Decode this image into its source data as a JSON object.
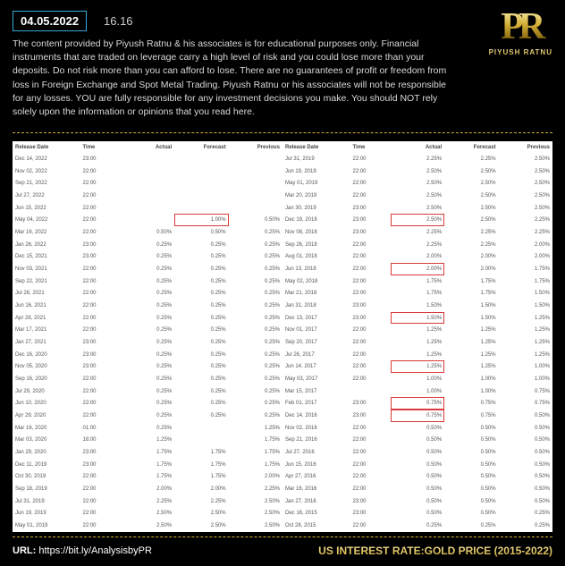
{
  "header": {
    "date_badge": "04.05.2022",
    "time": "16.16",
    "logo_monogram": "PR",
    "logo_name": "PIYUSH RATNU",
    "disclaimer": "The content provided by Piyush Ratnu & his associates is for educational purposes only. Financial instruments that are traded on leverage carry a high level of risk and you could lose more than your deposits. Do not risk more than you can afford to lose. There are no guarantees of profit or freedom from loss in Foreign Exchange and Spot Metal Trading. Piyush Ratnu or his associates will not be responsible for any losses. YOU are fully responsible for any investment decisions you make. You should NOT rely solely upon the information or opinions that you read here."
  },
  "footer": {
    "url_label": "URL:",
    "url_value": "https://bit.ly/AnalysisbyPR",
    "title": "US INTEREST RATE:GOLD PRICE (2015-2022)"
  },
  "columns": [
    "Release Date",
    "Time",
    "Actual",
    "Forecast",
    "Previous"
  ],
  "left_rows": [
    {
      "d": "Dec 14, 2022",
      "t": "23:00",
      "a": "",
      "f": "",
      "p": ""
    },
    {
      "d": "Nov 02, 2022",
      "t": "22:00",
      "a": "",
      "f": "",
      "p": ""
    },
    {
      "d": "Sep 21, 2022",
      "t": "22:00",
      "a": "",
      "f": "",
      "p": ""
    },
    {
      "d": "Jul 27, 2022",
      "t": "22:00",
      "a": "",
      "f": "",
      "p": ""
    },
    {
      "d": "Jun 15, 2022",
      "t": "22:00",
      "a": "",
      "f": "",
      "p": ""
    },
    {
      "d": "May 04, 2022",
      "t": "22:00",
      "a": "",
      "f": "1.00%",
      "p": "0.50%",
      "hl": "empty"
    },
    {
      "d": "Mar 16, 2022",
      "t": "22:00",
      "a": "0.50%",
      "f": "0.50%",
      "p": "0.25%"
    },
    {
      "d": "Jan 26, 2022",
      "t": "23:00",
      "a": "0.25%",
      "f": "0.25%",
      "p": "0.25%"
    },
    {
      "d": "Dec 15, 2021",
      "t": "23:00",
      "a": "0.25%",
      "f": "0.25%",
      "p": "0.25%"
    },
    {
      "d": "Nov 03, 2021",
      "t": "22:00",
      "a": "0.25%",
      "f": "0.25%",
      "p": "0.25%"
    },
    {
      "d": "Sep 22, 2021",
      "t": "22:00",
      "a": "0.25%",
      "f": "0.25%",
      "p": "0.25%"
    },
    {
      "d": "Jul 28, 2021",
      "t": "22:00",
      "a": "0.25%",
      "f": "0.25%",
      "p": "0.25%"
    },
    {
      "d": "Jun 16, 2021",
      "t": "22:00",
      "a": "0.25%",
      "f": "0.25%",
      "p": "0.25%"
    },
    {
      "d": "Apr 28, 2021",
      "t": "22:00",
      "a": "0.25%",
      "f": "0.25%",
      "p": "0.25%"
    },
    {
      "d": "Mar 17, 2021",
      "t": "22:00",
      "a": "0.25%",
      "f": "0.25%",
      "p": "0.25%"
    },
    {
      "d": "Jan 27, 2021",
      "t": "23:00",
      "a": "0.25%",
      "f": "0.25%",
      "p": "0.25%"
    },
    {
      "d": "Dec 16, 2020",
      "t": "23:00",
      "a": "0.25%",
      "f": "0.25%",
      "p": "0.25%"
    },
    {
      "d": "Nov 05, 2020",
      "t": "23:00",
      "a": "0.25%",
      "f": "0.25%",
      "p": "0.25%"
    },
    {
      "d": "Sep 16, 2020",
      "t": "22:00",
      "a": "0.25%",
      "f": "0.25%",
      "p": "0.25%"
    },
    {
      "d": "Jul 29, 2020",
      "t": "22:00",
      "a": "0.25%",
      "f": "0.25%",
      "p": "0.25%"
    },
    {
      "d": "Jun 10, 2020",
      "t": "22:00",
      "a": "0.25%",
      "f": "0.25%",
      "p": "0.25%"
    },
    {
      "d": "Apr 29, 2020",
      "t": "22:00",
      "a": "0.25%",
      "f": "0.25%",
      "p": "0.25%"
    },
    {
      "d": "Mar 16, 2020",
      "t": "01:00",
      "a": "0.25%",
      "f": "",
      "p": "1.25%"
    },
    {
      "d": "Mar 03, 2020",
      "t": "18:00",
      "a": "1.25%",
      "f": "",
      "p": "1.75%"
    },
    {
      "d": "Jan 29, 2020",
      "t": "23:00",
      "a": "1.75%",
      "f": "1.75%",
      "p": "1.75%"
    },
    {
      "d": "Dec 11, 2019",
      "t": "23:00",
      "a": "1.75%",
      "f": "1.75%",
      "p": "1.75%"
    },
    {
      "d": "Oct 30, 2019",
      "t": "22:00",
      "a": "1.75%",
      "f": "1.75%",
      "p": "2.00%"
    },
    {
      "d": "Sep 18, 2019",
      "t": "22:00",
      "a": "2.00%",
      "f": "2.00%",
      "p": "2.25%"
    },
    {
      "d": "Jul 31, 2019",
      "t": "22:00",
      "a": "2.25%",
      "f": "2.25%",
      "p": "2.50%"
    },
    {
      "d": "Jun 19, 2019",
      "t": "22:00",
      "a": "2.50%",
      "f": "2.50%",
      "p": "2.50%"
    },
    {
      "d": "May 01, 2019",
      "t": "22:00",
      "a": "2.50%",
      "f": "2.50%",
      "p": "2.50%"
    }
  ],
  "right_rows": [
    {
      "d": "Jul 31, 2019",
      "t": "22:00",
      "a": "2.25%",
      "f": "2.25%",
      "p": "2.50%"
    },
    {
      "d": "Jun 19, 2019",
      "t": "22:00",
      "a": "2.50%",
      "f": "2.50%",
      "p": "2.50%"
    },
    {
      "d": "May 01, 2019",
      "t": "22:00",
      "a": "2.50%",
      "f": "2.50%",
      "p": "2.50%"
    },
    {
      "d": "Mar 20, 2019",
      "t": "22:00",
      "a": "2.50%",
      "f": "2.50%",
      "p": "2.50%"
    },
    {
      "d": "Jan 30, 2019",
      "t": "23:00",
      "a": "2.50%",
      "f": "2.50%",
      "p": "2.50%"
    },
    {
      "d": "Dec 19, 2018",
      "t": "23:00",
      "a": "2.50%",
      "f": "2.50%",
      "p": "2.25%",
      "hl": "full"
    },
    {
      "d": "Nov 08, 2018",
      "t": "23:00",
      "a": "2.25%",
      "f": "2.25%",
      "p": "2.25%"
    },
    {
      "d": "Sep 26, 2018",
      "t": "22:00",
      "a": "2.25%",
      "f": "2.25%",
      "p": "2.00%"
    },
    {
      "d": "Aug 01, 2018",
      "t": "22:00",
      "a": "2.00%",
      "f": "2.00%",
      "p": "2.00%"
    },
    {
      "d": "Jun 13, 2018",
      "t": "22:00",
      "a": "2.00%",
      "f": "2.00%",
      "p": "1.75%",
      "hl": "full"
    },
    {
      "d": "May 02, 2018",
      "t": "22:00",
      "a": "1.75%",
      "f": "1.75%",
      "p": "1.75%"
    },
    {
      "d": "Mar 21, 2018",
      "t": "22:00",
      "a": "1.75%",
      "f": "1.75%",
      "p": "1.50%"
    },
    {
      "d": "Jan 31, 2018",
      "t": "23:00",
      "a": "1.50%",
      "f": "1.50%",
      "p": "1.50%"
    },
    {
      "d": "Dec 13, 2017",
      "t": "23:00",
      "a": "1.50%",
      "f": "1.50%",
      "p": "1.25%",
      "hl": "full"
    },
    {
      "d": "Nov 01, 2017",
      "t": "22:00",
      "a": "1.25%",
      "f": "1.25%",
      "p": "1.25%"
    },
    {
      "d": "Sep 20, 2017",
      "t": "22:00",
      "a": "1.25%",
      "f": "1.25%",
      "p": "1.25%"
    },
    {
      "d": "Jul 26, 2017",
      "t": "22:00",
      "a": "1.25%",
      "f": "1.25%",
      "p": "1.25%"
    },
    {
      "d": "Jun 14, 2017",
      "t": "22:00",
      "a": "1.25%",
      "f": "1.25%",
      "p": "1.00%",
      "hl": "full"
    },
    {
      "d": "May 03, 2017",
      "t": "22:00",
      "a": "1.00%",
      "f": "1.00%",
      "p": "1.00%"
    },
    {
      "d": "Mar 15, 2017",
      "t": "",
      "a": "1.00%",
      "f": "1.00%",
      "p": "0.75%"
    },
    {
      "d": "Feb 01, 2017",
      "t": "23:00",
      "a": "0.75%",
      "f": "0.75%",
      "p": "0.75%",
      "hl": "full"
    },
    {
      "d": "Dec 14, 2016",
      "t": "23:00",
      "a": "0.75%",
      "f": "0.75%",
      "p": "0.50%",
      "hl": "full"
    },
    {
      "d": "Nov 02, 2016",
      "t": "22:00",
      "a": "0.50%",
      "f": "0.50%",
      "p": "0.50%"
    },
    {
      "d": "Sep 21, 2016",
      "t": "22:00",
      "a": "0.50%",
      "f": "0.50%",
      "p": "0.50%"
    },
    {
      "d": "Jul 27, 2016",
      "t": "22:00",
      "a": "0.50%",
      "f": "0.50%",
      "p": "0.50%"
    },
    {
      "d": "Jun 15, 2016",
      "t": "22:00",
      "a": "0.50%",
      "f": "0.50%",
      "p": "0.50%"
    },
    {
      "d": "Apr 27, 2016",
      "t": "22:00",
      "a": "0.50%",
      "f": "0.50%",
      "p": "0.50%"
    },
    {
      "d": "Mar 16, 2016",
      "t": "22:00",
      "a": "0.50%",
      "f": "0.50%",
      "p": "0.50%"
    },
    {
      "d": "Jan 27, 2016",
      "t": "23:00",
      "a": "0.50%",
      "f": "0.50%",
      "p": "0.50%"
    },
    {
      "d": "Dec 16, 2015",
      "t": "23:00",
      "a": "0.50%",
      "f": "0.50%",
      "p": "0.25%"
    },
    {
      "d": "Oct 28, 2015",
      "t": "22:00",
      "a": "0.25%",
      "f": "0.25%",
      "p": "0.25%"
    }
  ]
}
